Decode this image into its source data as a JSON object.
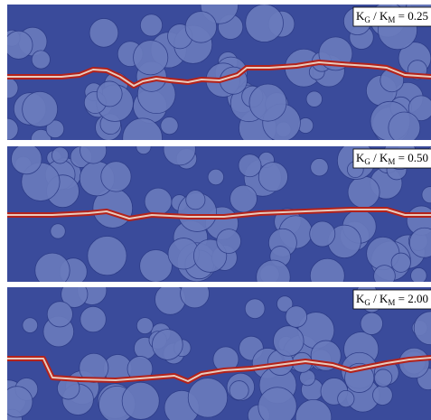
{
  "panels": [
    {
      "label": {
        "k1": "K",
        "sub1": "G",
        "sep": " / K",
        "sub2": "M",
        "value": " = 0.25"
      }
    },
    {
      "label": {
        "k1": "K",
        "sub1": "G",
        "sep": " / K",
        "sub2": "M",
        "value": " = 0.50"
      }
    },
    {
      "label": {
        "k1": "K",
        "sub1": "G",
        "sep": " / K",
        "sub2": "M",
        "value": " = 2.00"
      }
    }
  ]
}
